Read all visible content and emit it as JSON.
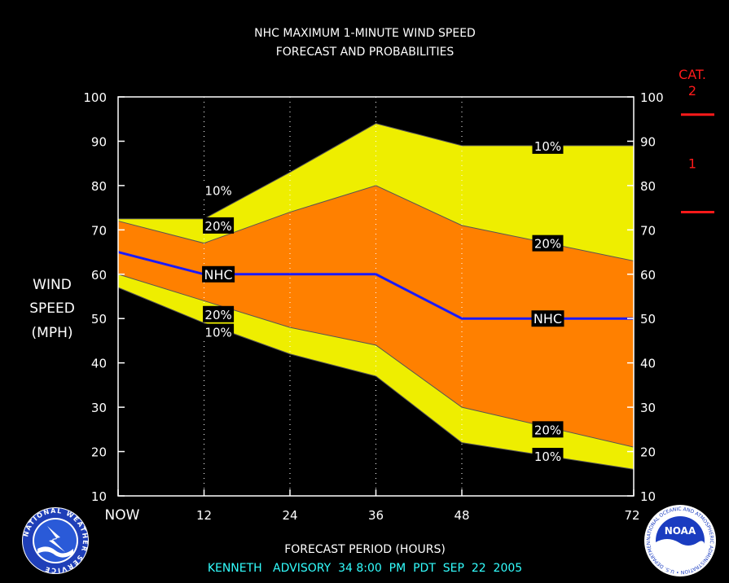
{
  "chart_data": {
    "type": "area",
    "title_line1": "NHC MAXIMUM 1-MINUTE WIND SPEED",
    "title_line2": "FORECAST AND PROBABILITIES",
    "ylabel": [
      "WIND",
      "SPEED",
      "(MPH)"
    ],
    "xlabel": "FORECAST PERIOD (HOURS)",
    "advisory": "KENNETH   ADVISORY  34 8:00  PM  PDT  SEP  22  2005",
    "ylim": [
      10,
      100
    ],
    "xlim": [
      0,
      72
    ],
    "yticks": [
      10,
      20,
      30,
      40,
      50,
      60,
      70,
      80,
      90,
      100
    ],
    "xticks": [
      {
        "x": 0,
        "label": "NOW"
      },
      {
        "x": 12,
        "label": "12"
      },
      {
        "x": 24,
        "label": "24"
      },
      {
        "x": 36,
        "label": "36"
      },
      {
        "x": 48,
        "label": "48"
      },
      {
        "x": 72,
        "label": "72"
      }
    ],
    "x": [
      0,
      12,
      24,
      36,
      48,
      72
    ],
    "series": [
      {
        "name": "10%",
        "role": "upper_10",
        "values": [
          72.5,
          72.5,
          83,
          94,
          89,
          89
        ]
      },
      {
        "name": "20%",
        "role": "upper_20",
        "values": [
          72,
          67,
          74,
          80,
          71,
          63
        ]
      },
      {
        "name": "NHC",
        "role": "nhc",
        "values": [
          65,
          60,
          60,
          60,
          50,
          50
        ]
      },
      {
        "name": "20%",
        "role": "lower_20",
        "values": [
          60,
          54,
          48,
          44,
          30,
          21
        ]
      },
      {
        "name": "10%",
        "role": "lower_10",
        "values": [
          57,
          49,
          42,
          37,
          22,
          16
        ]
      }
    ],
    "curve_labels": [
      {
        "text": "10%",
        "x": 14,
        "y": 79
      },
      {
        "text": "20%",
        "x": 14,
        "y": 71
      },
      {
        "text": "NHC",
        "x": 14,
        "y": 60
      },
      {
        "text": "20%",
        "x": 14,
        "y": 51
      },
      {
        "text": "10%",
        "x": 14,
        "y": 47
      },
      {
        "text": "10%",
        "x": 60,
        "y": 89
      },
      {
        "text": "20%",
        "x": 60,
        "y": 67
      },
      {
        "text": "NHC",
        "x": 60,
        "y": 50
      },
      {
        "text": "20%",
        "x": 60,
        "y": 25
      },
      {
        "text": "10%",
        "x": 60,
        "y": 19
      }
    ],
    "category_scale": {
      "header": "CAT.",
      "labels": [
        {
          "text": "2",
          "y": 101.5
        },
        {
          "text": "1",
          "y": 85
        }
      ],
      "thresholds": [
        96,
        74
      ]
    },
    "colors": {
      "background": "#000000",
      "outer_band": "#eeee00",
      "inner_band": "#ff8000",
      "nhc_line": "#1a1aff",
      "category": "#ff1a1a",
      "advisory_text": "#33ffff"
    }
  },
  "logos": {
    "left": "NATIONAL WEATHER SERVICE",
    "right_center": "NOAA",
    "right_ring": "NATIONAL OCEANIC AND ATMOSPHERIC ADMINISTRATION • U.S. DEPARTMENT OF COMMERCE"
  }
}
